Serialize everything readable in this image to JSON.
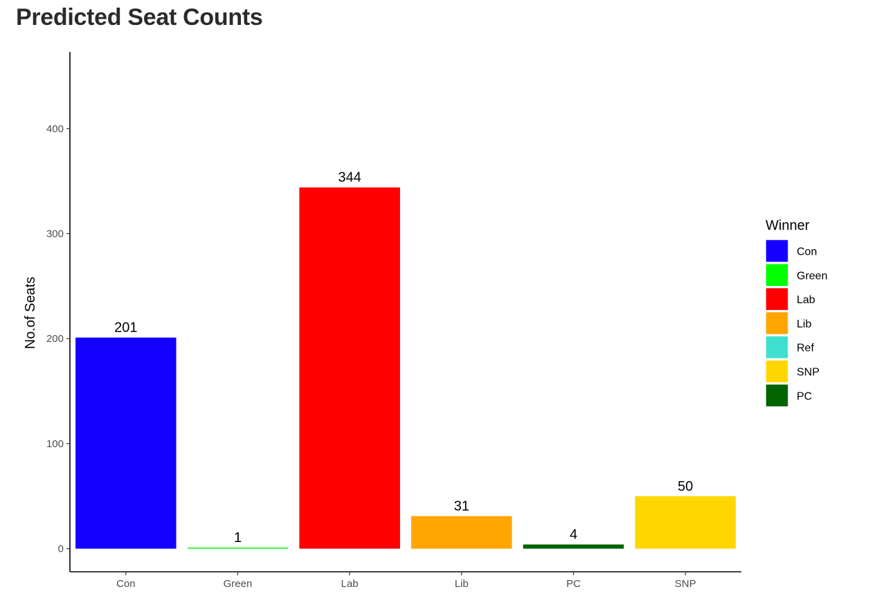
{
  "title": "Predicted Seat Counts",
  "chart_data": {
    "type": "bar",
    "title": "Predicted Seat Counts",
    "xlabel": "",
    "ylabel": "No.of Seats",
    "categories": [
      "Con",
      "Green",
      "Lab",
      "Lib",
      "PC",
      "SNP"
    ],
    "values": [
      201,
      1,
      344,
      31,
      4,
      50
    ],
    "bar_colors": [
      "#1400FF",
      "#00FF00",
      "#FF0000",
      "#FFA500",
      "#006400",
      "#FFD700"
    ],
    "ylim": [
      -22,
      473
    ],
    "yticks": [
      0,
      100,
      200,
      300,
      400
    ],
    "grid": false,
    "legend": {
      "title": "Winner",
      "position": "right",
      "entries": [
        {
          "label": "Con",
          "color": "#1400FF"
        },
        {
          "label": "Green",
          "color": "#00FF00"
        },
        {
          "label": "Lab",
          "color": "#FF0000"
        },
        {
          "label": "Lib",
          "color": "#FFA500"
        },
        {
          "label": "Ref",
          "color": "#40E0D0"
        },
        {
          "label": "SNP",
          "color": "#FFD700"
        },
        {
          "label": "PC",
          "color": "#006400"
        }
      ]
    }
  }
}
